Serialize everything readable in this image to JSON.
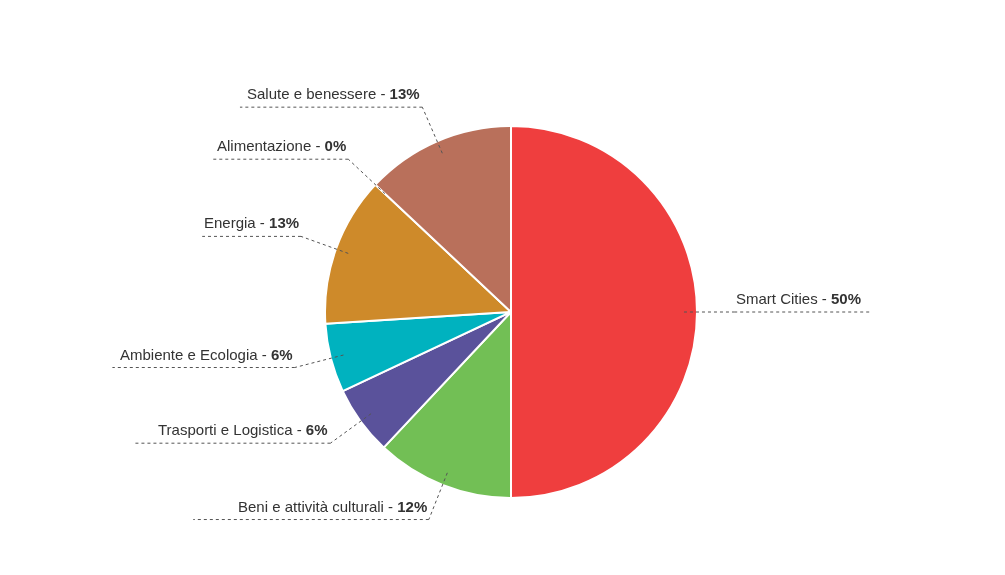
{
  "chart_data": {
    "type": "pie",
    "categories": [
      "Smart Cities -",
      "Beni e attività culturali -",
      "Trasporti e Logistica -",
      "Ambiente e Ecologia -",
      "Energia -",
      "Alimentazione -",
      "Salute e benessere -"
    ],
    "values": [
      50,
      12,
      6,
      6,
      13,
      0,
      13
    ],
    "value_labels": [
      "50%",
      "12%",
      "6%",
      "6%",
      "13%",
      "0%",
      "13%"
    ],
    "colors": [
      "#ef3e3e",
      "#72bf55",
      "#5a529b",
      "#00b2bf",
      "#ce8a2a",
      "#9a9a9a",
      "#b9705b"
    ],
    "legend": false
  }
}
